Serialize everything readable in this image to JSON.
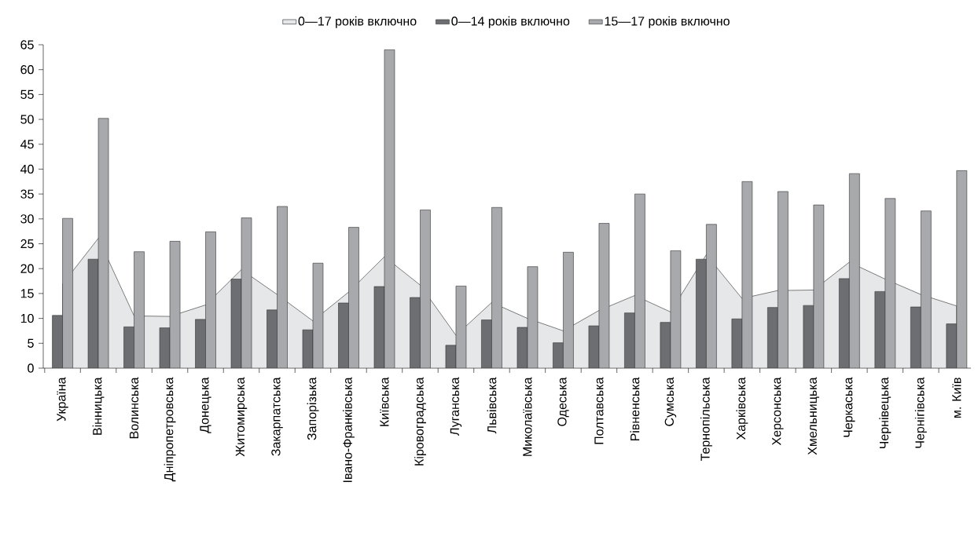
{
  "chart_data": {
    "type": "bar",
    "legend": "top",
    "grid": false,
    "categories": [
      "Україна",
      "Вінницька",
      "Волинська",
      "Дніпропетровська",
      "Донецька",
      "Житомирська",
      "Закарпатська",
      "Запорізька",
      "Івано-Франківська",
      "Київська",
      "Кіровоградська",
      "Луганська",
      "Львівська",
      "Миколаївська",
      "Одеська",
      "Полтавська",
      "Рівненська",
      "Сумська",
      "Тернопільська",
      "Харківська",
      "Херсонська",
      "Хмельницька",
      "Черкаська",
      "Чернівецька",
      "Чернігівська",
      "м. Київ"
    ],
    "ylim": [
      0,
      65
    ],
    "yticks": [
      0,
      5,
      10,
      15,
      20,
      25,
      30,
      35,
      40,
      45,
      50,
      55,
      60,
      65
    ],
    "series": [
      {
        "name": "0—17 років включно",
        "type": "area",
        "color": "#e6e7e9",
        "values": [
          16.9,
          26.1,
          10.5,
          10.4,
          12.7,
          19.8,
          14.8,
          9.5,
          15.3,
          22.4,
          16.7,
          6.6,
          13.2,
          10.0,
          7.5,
          11.6,
          14.6,
          11.3,
          22.8,
          14.0,
          15.6,
          15.7,
          21.3,
          17.9,
          14.8,
          12.5
        ]
      },
      {
        "name": "0—14 років включно",
        "type": "bar",
        "color": "#6d6e71",
        "values": [
          10.6,
          21.9,
          8.3,
          8.1,
          9.8,
          17.9,
          11.7,
          7.7,
          13.1,
          16.4,
          14.2,
          4.6,
          9.7,
          8.2,
          5.1,
          8.5,
          11.1,
          9.2,
          21.9,
          9.9,
          12.2,
          12.6,
          18.0,
          15.4,
          12.3,
          8.9
        ]
      },
      {
        "name": "15—17 років включно",
        "type": "bar",
        "color": "#a7a9ac",
        "values": [
          30.1,
          50.2,
          23.4,
          25.5,
          27.4,
          30.2,
          32.5,
          21.1,
          28.3,
          64.0,
          31.8,
          16.5,
          32.3,
          20.4,
          23.3,
          29.1,
          35.0,
          23.6,
          28.9,
          37.5,
          35.5,
          32.8,
          39.1,
          34.1,
          31.6,
          39.7
        ]
      }
    ]
  }
}
